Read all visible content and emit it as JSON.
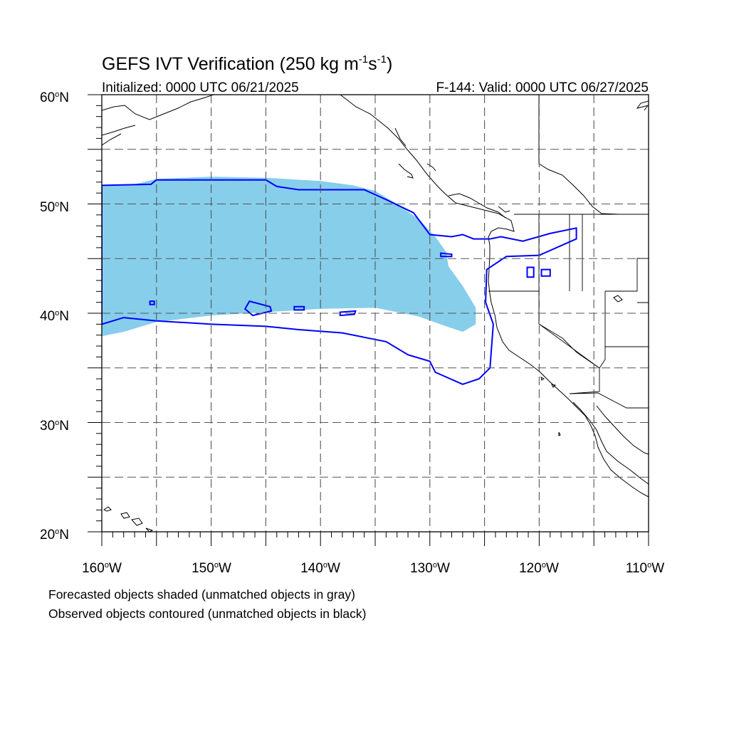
{
  "title": {
    "main": "GEFS IVT Verification (250 kg m",
    "sup1": "-1",
    "mid": "s",
    "sup2": "-1",
    "end": ")"
  },
  "subtitle_left": "Initialized: 0000 UTC 06/21/2025",
  "subtitle_right": "F-144: Valid: 0000 UTC 06/27/2025",
  "lat_ticks": [
    {
      "value": 60,
      "num": "60",
      "unit": "N"
    },
    {
      "value": 50,
      "num": "50",
      "unit": "N"
    },
    {
      "value": 40,
      "num": "40",
      "unit": "N"
    },
    {
      "value": 30,
      "num": "30",
      "unit": "N"
    },
    {
      "value": 20,
      "num": "20",
      "unit": "N"
    }
  ],
  "lon_ticks": [
    {
      "value": -160,
      "num": "160",
      "unit": "W"
    },
    {
      "value": -150,
      "num": "150",
      "unit": "W"
    },
    {
      "value": -140,
      "num": "140",
      "unit": "W"
    },
    {
      "value": -130,
      "num": "130",
      "unit": "W"
    },
    {
      "value": -120,
      "num": "120",
      "unit": "W"
    },
    {
      "value": -110,
      "num": "110",
      "unit": "W"
    }
  ],
  "extent": {
    "lon": [
      -160,
      -110
    ],
    "lat": [
      20,
      60
    ]
  },
  "grid_interval_deg": 5,
  "colors": {
    "forecast_fill": "#87ceeb",
    "observed_contour": "#0000ff",
    "coastline": "#000000",
    "gridline": "#555555"
  },
  "captions": {
    "forecast": "Forecasted objects shaded (unmatched objects in gray)",
    "observed": "Observed objects contoured (unmatched objects in black)"
  },
  "objects": {
    "forecast_object": [
      [
        -160,
        51.7
      ],
      [
        -157,
        51.8
      ],
      [
        -155,
        52.3
      ],
      [
        -150,
        52.5
      ],
      [
        -145,
        52.4
      ],
      [
        -140,
        52.1
      ],
      [
        -137,
        51.7
      ],
      [
        -135,
        51.2
      ],
      [
        -133,
        50.0
      ],
      [
        -131,
        48.6
      ],
      [
        -129.5,
        47.0
      ],
      [
        -128.5,
        45.6
      ],
      [
        -128.3,
        44.3
      ],
      [
        -127,
        42.5
      ],
      [
        -125.8,
        40.5
      ],
      [
        -125.8,
        39.0
      ],
      [
        -127,
        38.3
      ],
      [
        -128.5,
        38.8
      ],
      [
        -131,
        39.7
      ],
      [
        -135,
        40.5
      ],
      [
        -140,
        40.4
      ],
      [
        -145,
        40.1
      ],
      [
        -150,
        39.8
      ],
      [
        -155,
        39.2
      ],
      [
        -158,
        38.3
      ],
      [
        -160,
        37.9
      ]
    ],
    "observed_object_main": [
      [
        -160,
        51.7
      ],
      [
        -155.5,
        51.8
      ],
      [
        -155,
        52.2
      ],
      [
        -153,
        52.2
      ],
      [
        -145,
        52.2
      ],
      [
        -144,
        51.6
      ],
      [
        -142,
        51.3
      ],
      [
        -140,
        51.3
      ],
      [
        -136,
        51.3
      ],
      [
        -134,
        50.4
      ],
      [
        -131.5,
        49.2
      ],
      [
        -130,
        47.2
      ],
      [
        -128,
        47.0
      ],
      [
        -127,
        47.2
      ],
      [
        -126,
        46.8
      ],
      [
        -124.5,
        46.8
      ],
      [
        -123.5,
        47.0
      ],
      [
        -121.5,
        46.6
      ],
      [
        -119,
        47.3
      ],
      [
        -116.6,
        47.8
      ],
      [
        -116.6,
        46.8
      ],
      [
        -120,
        45.3
      ],
      [
        -123,
        45.2
      ],
      [
        -124.8,
        44.0
      ],
      [
        -124.9,
        41.0
      ],
      [
        -124.2,
        39.0
      ],
      [
        -124.5,
        35.0
      ],
      [
        -125.5,
        34.0
      ],
      [
        -127,
        33.5
      ],
      [
        -129.5,
        34.6
      ],
      [
        -130,
        35.6
      ],
      [
        -132,
        36.2
      ],
      [
        -134,
        37.4
      ],
      [
        -136,
        37.8
      ],
      [
        -138,
        38.2
      ],
      [
        -142,
        38.5
      ],
      [
        -145,
        38.8
      ],
      [
        -150,
        39.0
      ],
      [
        -155,
        39.3
      ],
      [
        -158,
        39.6
      ],
      [
        -160,
        39.0
      ]
    ],
    "observed_small_blobs": [
      [
        [
          -146.5,
          41.1
        ],
        [
          -144.6,
          40.6
        ],
        [
          -144.5,
          40.2
        ],
        [
          -146.2,
          39.8
        ],
        [
          -146.9,
          40.4
        ]
      ],
      [
        [
          -142.4,
          40.6
        ],
        [
          -141.5,
          40.6
        ],
        [
          -141.5,
          40.3
        ],
        [
          -142.4,
          40.3
        ]
      ],
      [
        [
          -138.2,
          40.1
        ],
        [
          -136.8,
          40.2
        ],
        [
          -136.9,
          39.9
        ],
        [
          -138.2,
          39.8
        ]
      ],
      [
        [
          -155.6,
          41.1
        ],
        [
          -155.2,
          41.1
        ],
        [
          -155.2,
          40.8
        ],
        [
          -155.6,
          40.8
        ]
      ],
      [
        [
          -129,
          45.5
        ],
        [
          -128,
          45.4
        ],
        [
          -128,
          45.2
        ],
        [
          -129,
          45.2
        ]
      ],
      [
        [
          -121.1,
          44.2
        ],
        [
          -120.5,
          44.2
        ],
        [
          -120.5,
          43.3
        ],
        [
          -121.1,
          43.3
        ]
      ],
      [
        [
          -119.8,
          44.0
        ],
        [
          -119.0,
          44.0
        ],
        [
          -119.0,
          43.4
        ],
        [
          -119.8,
          43.4
        ]
      ]
    ]
  }
}
